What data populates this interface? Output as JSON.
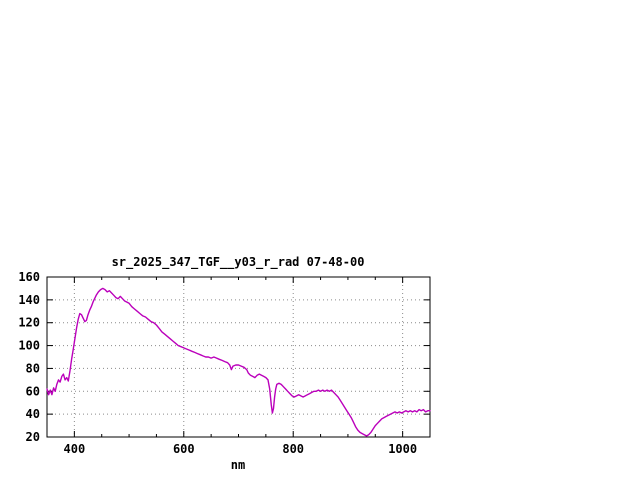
{
  "page": {
    "background_color": "#ffffff"
  },
  "chart_data": {
    "type": "line",
    "title": "sr_2025_347_TGF__y03_r_rad 07-48-00",
    "xlabel": "nm",
    "ylabel": "",
    "xlim": [
      350,
      1050
    ],
    "ylim": [
      20,
      160
    ],
    "xticks": [
      400,
      600,
      800,
      1000
    ],
    "yticks": [
      20,
      40,
      60,
      80,
      100,
      120,
      140,
      160
    ],
    "x_minor_step": 50,
    "grid": true,
    "legend": "none",
    "line_color": "#bb00bb",
    "points": [
      [
        350,
        62
      ],
      [
        353,
        57
      ],
      [
        356,
        61
      ],
      [
        359,
        57
      ],
      [
        362,
        63
      ],
      [
        365,
        60
      ],
      [
        368,
        66
      ],
      [
        371,
        70
      ],
      [
        374,
        68
      ],
      [
        377,
        73
      ],
      [
        380,
        75
      ],
      [
        383,
        70
      ],
      [
        386,
        72
      ],
      [
        389,
        69
      ],
      [
        392,
        78
      ],
      [
        395,
        88
      ],
      [
        398,
        97
      ],
      [
        401,
        106
      ],
      [
        404,
        115
      ],
      [
        407,
        123
      ],
      [
        410,
        128
      ],
      [
        413,
        127
      ],
      [
        416,
        124
      ],
      [
        419,
        121
      ],
      [
        422,
        122
      ],
      [
        425,
        127
      ],
      [
        428,
        131
      ],
      [
        431,
        134
      ],
      [
        434,
        138
      ],
      [
        437,
        141
      ],
      [
        440,
        144
      ],
      [
        444,
        147
      ],
      [
        448,
        149
      ],
      [
        452,
        150
      ],
      [
        456,
        149
      ],
      [
        460,
        147
      ],
      [
        464,
        148
      ],
      [
        468,
        146
      ],
      [
        472,
        144
      ],
      [
        476,
        142
      ],
      [
        480,
        141
      ],
      [
        484,
        143
      ],
      [
        488,
        141
      ],
      [
        492,
        139
      ],
      [
        496,
        138
      ],
      [
        500,
        137
      ],
      [
        505,
        134
      ],
      [
        510,
        132
      ],
      [
        515,
        130
      ],
      [
        520,
        128
      ],
      [
        525,
        126
      ],
      [
        530,
        125
      ],
      [
        535,
        123
      ],
      [
        540,
        121
      ],
      [
        545,
        120
      ],
      [
        550,
        118
      ],
      [
        555,
        115
      ],
      [
        560,
        112
      ],
      [
        565,
        110
      ],
      [
        570,
        108
      ],
      [
        575,
        106
      ],
      [
        580,
        104
      ],
      [
        585,
        102
      ],
      [
        590,
        100
      ],
      [
        595,
        99
      ],
      [
        600,
        98
      ],
      [
        605,
        97
      ],
      [
        610,
        96
      ],
      [
        615,
        95
      ],
      [
        620,
        94
      ],
      [
        625,
        93
      ],
      [
        630,
        92
      ],
      [
        635,
        91
      ],
      [
        640,
        90
      ],
      [
        645,
        90
      ],
      [
        650,
        89
      ],
      [
        655,
        90
      ],
      [
        660,
        89
      ],
      [
        665,
        88
      ],
      [
        670,
        87
      ],
      [
        675,
        86
      ],
      [
        680,
        85
      ],
      [
        684,
        83
      ],
      [
        687,
        79
      ],
      [
        690,
        82
      ],
      [
        695,
        83
      ],
      [
        700,
        83
      ],
      [
        705,
        82
      ],
      [
        710,
        81
      ],
      [
        715,
        79
      ],
      [
        718,
        76
      ],
      [
        722,
        74
      ],
      [
        726,
        73
      ],
      [
        730,
        72
      ],
      [
        734,
        74
      ],
      [
        738,
        75
      ],
      [
        742,
        74
      ],
      [
        746,
        73
      ],
      [
        750,
        72
      ],
      [
        754,
        70
      ],
      [
        757,
        62
      ],
      [
        760,
        48
      ],
      [
        762,
        41
      ],
      [
        764,
        45
      ],
      [
        766,
        55
      ],
      [
        768,
        62
      ],
      [
        770,
        66
      ],
      [
        774,
        67
      ],
      [
        778,
        66
      ],
      [
        782,
        64
      ],
      [
        786,
        62
      ],
      [
        790,
        60
      ],
      [
        794,
        58
      ],
      [
        798,
        56
      ],
      [
        802,
        55
      ],
      [
        806,
        56
      ],
      [
        810,
        57
      ],
      [
        814,
        56
      ],
      [
        818,
        55
      ],
      [
        822,
        56
      ],
      [
        826,
        57
      ],
      [
        830,
        58
      ],
      [
        834,
        59
      ],
      [
        838,
        60
      ],
      [
        842,
        60
      ],
      [
        846,
        61
      ],
      [
        850,
        60
      ],
      [
        854,
        61
      ],
      [
        858,
        60
      ],
      [
        862,
        61
      ],
      [
        866,
        60
      ],
      [
        870,
        61
      ],
      [
        874,
        59
      ],
      [
        878,
        57
      ],
      [
        882,
        55
      ],
      [
        886,
        52
      ],
      [
        890,
        49
      ],
      [
        894,
        46
      ],
      [
        898,
        43
      ],
      [
        902,
        40
      ],
      [
        906,
        37
      ],
      [
        910,
        33
      ],
      [
        914,
        29
      ],
      [
        918,
        26
      ],
      [
        922,
        24
      ],
      [
        926,
        23
      ],
      [
        930,
        22
      ],
      [
        934,
        21
      ],
      [
        938,
        22
      ],
      [
        942,
        24
      ],
      [
        946,
        27
      ],
      [
        950,
        30
      ],
      [
        954,
        32
      ],
      [
        958,
        34
      ],
      [
        962,
        36
      ],
      [
        966,
        37
      ],
      [
        970,
        38
      ],
      [
        974,
        39
      ],
      [
        978,
        40
      ],
      [
        982,
        41
      ],
      [
        986,
        42
      ],
      [
        990,
        41
      ],
      [
        994,
        42
      ],
      [
        998,
        41
      ],
      [
        1002,
        42
      ],
      [
        1006,
        43
      ],
      [
        1010,
        42
      ],
      [
        1014,
        43
      ],
      [
        1018,
        42
      ],
      [
        1022,
        43
      ],
      [
        1026,
        42
      ],
      [
        1030,
        44
      ],
      [
        1034,
        43
      ],
      [
        1038,
        44
      ],
      [
        1042,
        42
      ],
      [
        1046,
        43
      ],
      [
        1050,
        43
      ]
    ]
  }
}
